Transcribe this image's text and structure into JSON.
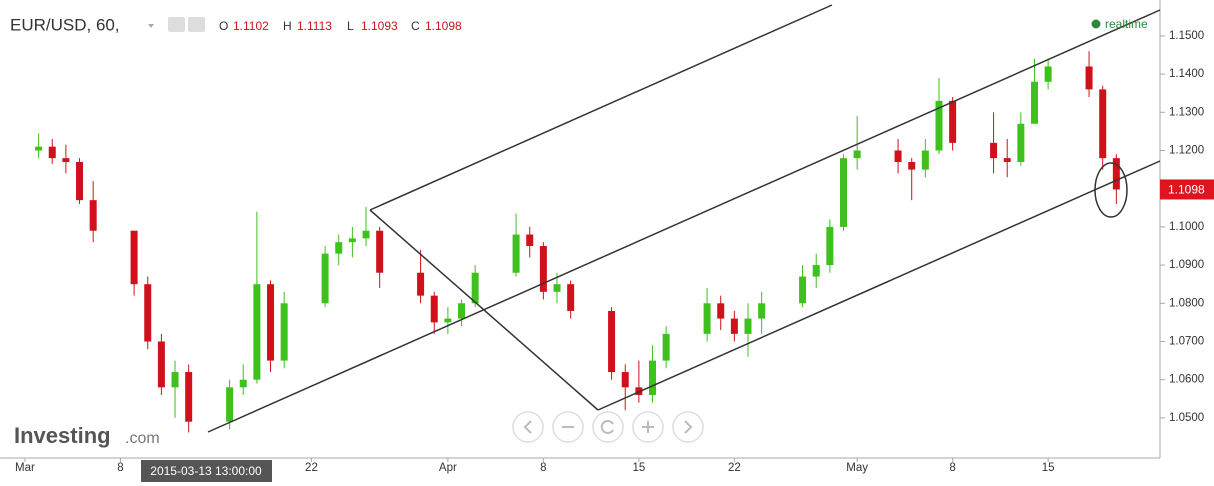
{
  "chart_data": {
    "type": "candlestick",
    "title": "EUR/USD, 60,",
    "ohlc_header": [
      {
        "name": "O",
        "value": "1.1102"
      },
      {
        "name": "H",
        "value": "1.1113"
      },
      {
        "name": "L",
        "value": "1.1093"
      },
      {
        "name": "C",
        "value": "1.1098"
      }
    ],
    "status": "realtime",
    "last_price": {
      "value": 1.1098,
      "label": "1.1098"
    },
    "crosshair_label": "2015-03-13 13:00:00",
    "logo": {
      "main": "Investing",
      "suffix": ".com"
    },
    "up_color": "#3ec01e",
    "down_color": "#d0111b",
    "xlim": [
      -0.83,
      84.2
    ],
    "xticks": [
      {
        "value": 1,
        "label": "Mar"
      },
      {
        "value": 8,
        "label": "8"
      },
      {
        "value": 22,
        "label": "22"
      },
      {
        "value": 32,
        "label": "Apr"
      },
      {
        "value": 39,
        "label": "8"
      },
      {
        "value": 46,
        "label": "15"
      },
      {
        "value": 53,
        "label": "22"
      },
      {
        "value": 62,
        "label": "May"
      },
      {
        "value": 69,
        "label": "8"
      },
      {
        "value": 76,
        "label": "15"
      }
    ],
    "ylim": [
      1.0395,
      1.1594
    ],
    "yticks": [
      {
        "value": 1.05,
        "label": "1.0500"
      },
      {
        "value": 1.06,
        "label": "1.0600"
      },
      {
        "value": 1.07,
        "label": "1.0700"
      },
      {
        "value": 1.08,
        "label": "1.0800"
      },
      {
        "value": 1.09,
        "label": "1.0900"
      },
      {
        "value": 1.1,
        "label": "1.1000"
      },
      {
        "value": 1.11,
        "label": "1.1100"
      },
      {
        "value": 1.12,
        "label": "1.1200"
      },
      {
        "value": 1.13,
        "label": "1.1300"
      },
      {
        "value": 1.14,
        "label": "1.1400"
      },
      {
        "value": 1.15,
        "label": "1.1500"
      }
    ],
    "x": [
      2,
      3,
      4,
      5,
      6,
      9,
      10,
      11,
      12,
      13,
      16,
      17,
      18,
      19,
      20,
      23,
      24,
      25,
      26,
      27,
      30,
      31,
      32,
      33,
      34,
      37,
      38,
      39,
      40,
      41,
      44,
      45,
      46,
      47,
      48,
      51,
      52,
      53,
      54,
      55,
      58,
      59,
      60,
      61,
      62,
      65,
      66,
      67,
      68,
      69,
      72,
      73,
      74,
      75,
      76,
      79,
      80,
      81
    ],
    "open": [
      1.12,
      1.121,
      1.118,
      1.117,
      1.107,
      1.099,
      1.085,
      1.07,
      1.058,
      1.062,
      1.049,
      1.058,
      1.06,
      1.085,
      1.065,
      1.08,
      1.093,
      1.096,
      1.097,
      1.099,
      1.088,
      1.082,
      1.075,
      1.076,
      1.08,
      1.088,
      1.098,
      1.095,
      1.083,
      1.085,
      1.078,
      1.062,
      1.058,
      1.056,
      1.065,
      1.072,
      1.08,
      1.076,
      1.072,
      1.076,
      1.08,
      1.087,
      1.09,
      1.1,
      1.118,
      1.12,
      1.117,
      1.115,
      1.12,
      1.133,
      1.122,
      1.118,
      1.117,
      1.127,
      1.138,
      1.142,
      1.136,
      1.118
    ],
    "high": [
      1.1245,
      1.123,
      1.1215,
      1.118,
      1.112,
      1.099,
      1.087,
      1.072,
      1.065,
      1.064,
      1.06,
      1.064,
      1.104,
      1.086,
      1.083,
      1.095,
      1.098,
      1.1,
      1.1052,
      1.1,
      1.094,
      1.083,
      1.079,
      1.081,
      1.09,
      1.1035,
      1.1,
      1.096,
      1.088,
      1.086,
      1.079,
      1.064,
      1.065,
      1.069,
      1.074,
      1.084,
      1.082,
      1.078,
      1.08,
      1.083,
      1.09,
      1.093,
      1.102,
      1.119,
      1.129,
      1.123,
      1.118,
      1.123,
      1.139,
      1.134,
      1.13,
      1.123,
      1.13,
      1.144,
      1.144,
      1.146,
      1.137,
      1.119
    ],
    "low": [
      1.118,
      1.1165,
      1.114,
      1.106,
      1.096,
      1.082,
      1.068,
      1.056,
      1.05,
      1.0462,
      1.047,
      1.056,
      1.059,
      1.062,
      1.063,
      1.079,
      1.09,
      1.092,
      1.095,
      1.084,
      1.08,
      1.072,
      1.072,
      1.074,
      1.079,
      1.087,
      1.092,
      1.081,
      1.08,
      1.076,
      1.06,
      1.052,
      1.054,
      1.054,
      1.063,
      1.07,
      1.073,
      1.07,
      1.066,
      1.072,
      1.079,
      1.084,
      1.088,
      1.099,
      1.115,
      1.114,
      1.107,
      1.113,
      1.119,
      1.12,
      1.114,
      1.113,
      1.116,
      1.127,
      1.136,
      1.134,
      1.115,
      1.106
    ],
    "close": [
      1.121,
      1.118,
      1.117,
      1.107,
      1.099,
      1.085,
      1.07,
      1.058,
      1.062,
      1.049,
      1.058,
      1.06,
      1.085,
      1.065,
      1.08,
      1.093,
      1.096,
      1.097,
      1.099,
      1.088,
      1.082,
      1.075,
      1.076,
      1.08,
      1.088,
      1.098,
      1.095,
      1.083,
      1.085,
      1.078,
      1.062,
      1.058,
      1.056,
      1.065,
      1.072,
      1.08,
      1.076,
      1.072,
      1.076,
      1.08,
      1.087,
      1.09,
      1.1,
      1.118,
      1.12,
      1.117,
      1.115,
      1.12,
      1.133,
      1.122,
      1.118,
      1.117,
      1.127,
      1.138,
      1.142,
      1.136,
      1.118,
      1.1098
    ]
  }
}
